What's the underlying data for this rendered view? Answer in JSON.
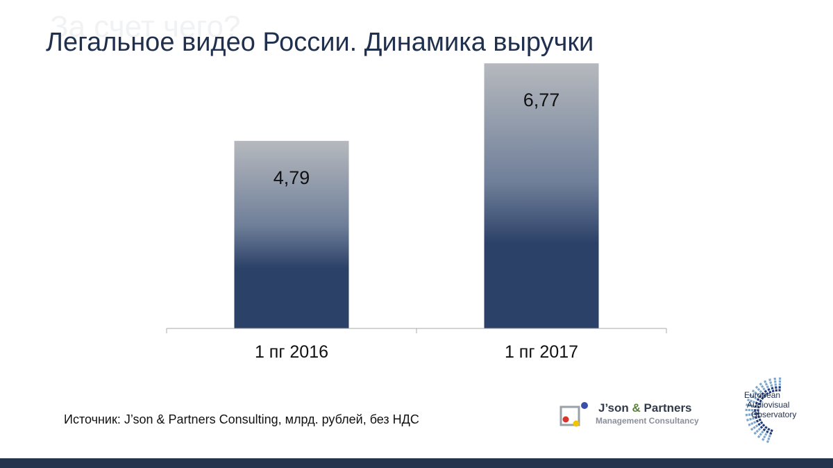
{
  "slide": {
    "ghost_title": "За счет чего?",
    "title": "Легальное видео России. Динамика выручки",
    "source": "Источник: J’son & Partners Consulting, млрд. рублей, без НДС"
  },
  "chart_data": {
    "type": "bar",
    "categories": [
      "1 пг 2016",
      "1 пг 2017"
    ],
    "values": [
      4.79,
      6.77
    ],
    "value_labels": [
      "4,79",
      "6,77"
    ],
    "title": "",
    "xlabel": "",
    "ylabel": "",
    "ylim": [
      0,
      7.5
    ],
    "grid": false,
    "legend": "none",
    "colors": {
      "bar_top": "#b6b9be",
      "bar_bottom": "#2c4168",
      "axis": "#a8a8a8"
    }
  },
  "logos": {
    "jp_name_1": "J’son",
    "jp_amp": "&",
    "jp_name_2": "Partners",
    "jp_sub": "Management Consultancy",
    "eao_line1": "European",
    "eao_line2": "Audiovisual",
    "eao_line3": "Observatory"
  }
}
